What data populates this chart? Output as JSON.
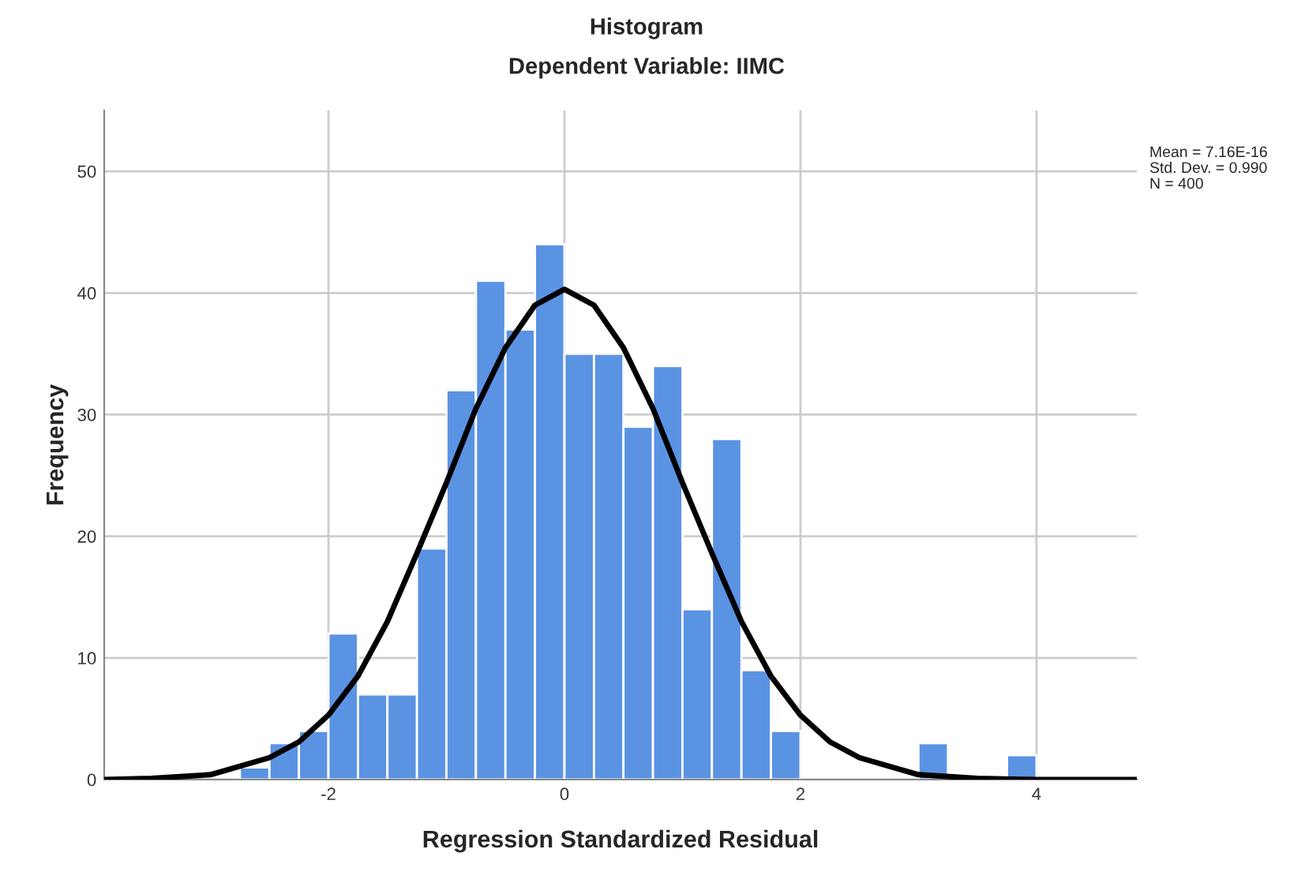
{
  "chart_data": {
    "type": "histogram",
    "title": "Histogram",
    "subtitle": "Dependent Variable: IIMC",
    "xlabel": "Regression Standardized Residual",
    "ylabel": "Frequency",
    "bins": [
      -2.75,
      -2.5,
      -2.25,
      -2.0,
      -1.75,
      -1.5,
      -1.25,
      -1.0,
      -0.75,
      -0.5,
      -0.25,
      0.0,
      0.25,
      0.5,
      0.75,
      1.0,
      1.25,
      1.5,
      1.75,
      2.0,
      2.25,
      2.5,
      2.75,
      3.0,
      3.25,
      3.5,
      3.75,
      4.0
    ],
    "values": [
      1,
      3,
      4,
      12,
      7,
      7,
      19,
      32,
      41,
      37,
      44,
      35,
      35,
      29,
      34,
      14,
      28,
      9,
      4,
      0,
      0,
      0,
      0,
      3,
      0,
      0,
      2
    ],
    "color": "#5b93e3",
    "series": [
      {
        "type": "line",
        "color": "#000000",
        "x": [
          -3.9,
          -3.5,
          -3.0,
          -2.5,
          -2.25,
          -2.0,
          -1.75,
          -1.5,
          -1.25,
          -1.0,
          -0.75,
          -0.5,
          -0.25,
          0.0,
          0.25,
          0.5,
          0.75,
          1.0,
          1.25,
          1.5,
          1.75,
          2.0,
          2.25,
          2.5,
          3.0,
          3.5,
          4.0,
          4.85
        ],
        "values": [
          0,
          0.1,
          0.4,
          1.8,
          3.1,
          5.3,
          8.5,
          13,
          18.6,
          24.4,
          30.5,
          35.5,
          39,
          40.3,
          39,
          35.5,
          30.5,
          24.4,
          18.6,
          13,
          8.5,
          5.3,
          3.1,
          1.8,
          0.4,
          0.1,
          0,
          0
        ]
      }
    ],
    "annotations": [
      "Mean = 7.16E-16",
      "Std. Dev. = 0.990",
      "N = 400"
    ],
    "xlim": [
      -3.9,
      4.85
    ],
    "ylim": [
      0,
      55
    ],
    "xticks": [
      -2,
      0,
      2,
      4
    ],
    "yticks": [
      0,
      10,
      20,
      30,
      40,
      50
    ],
    "grid": true
  }
}
